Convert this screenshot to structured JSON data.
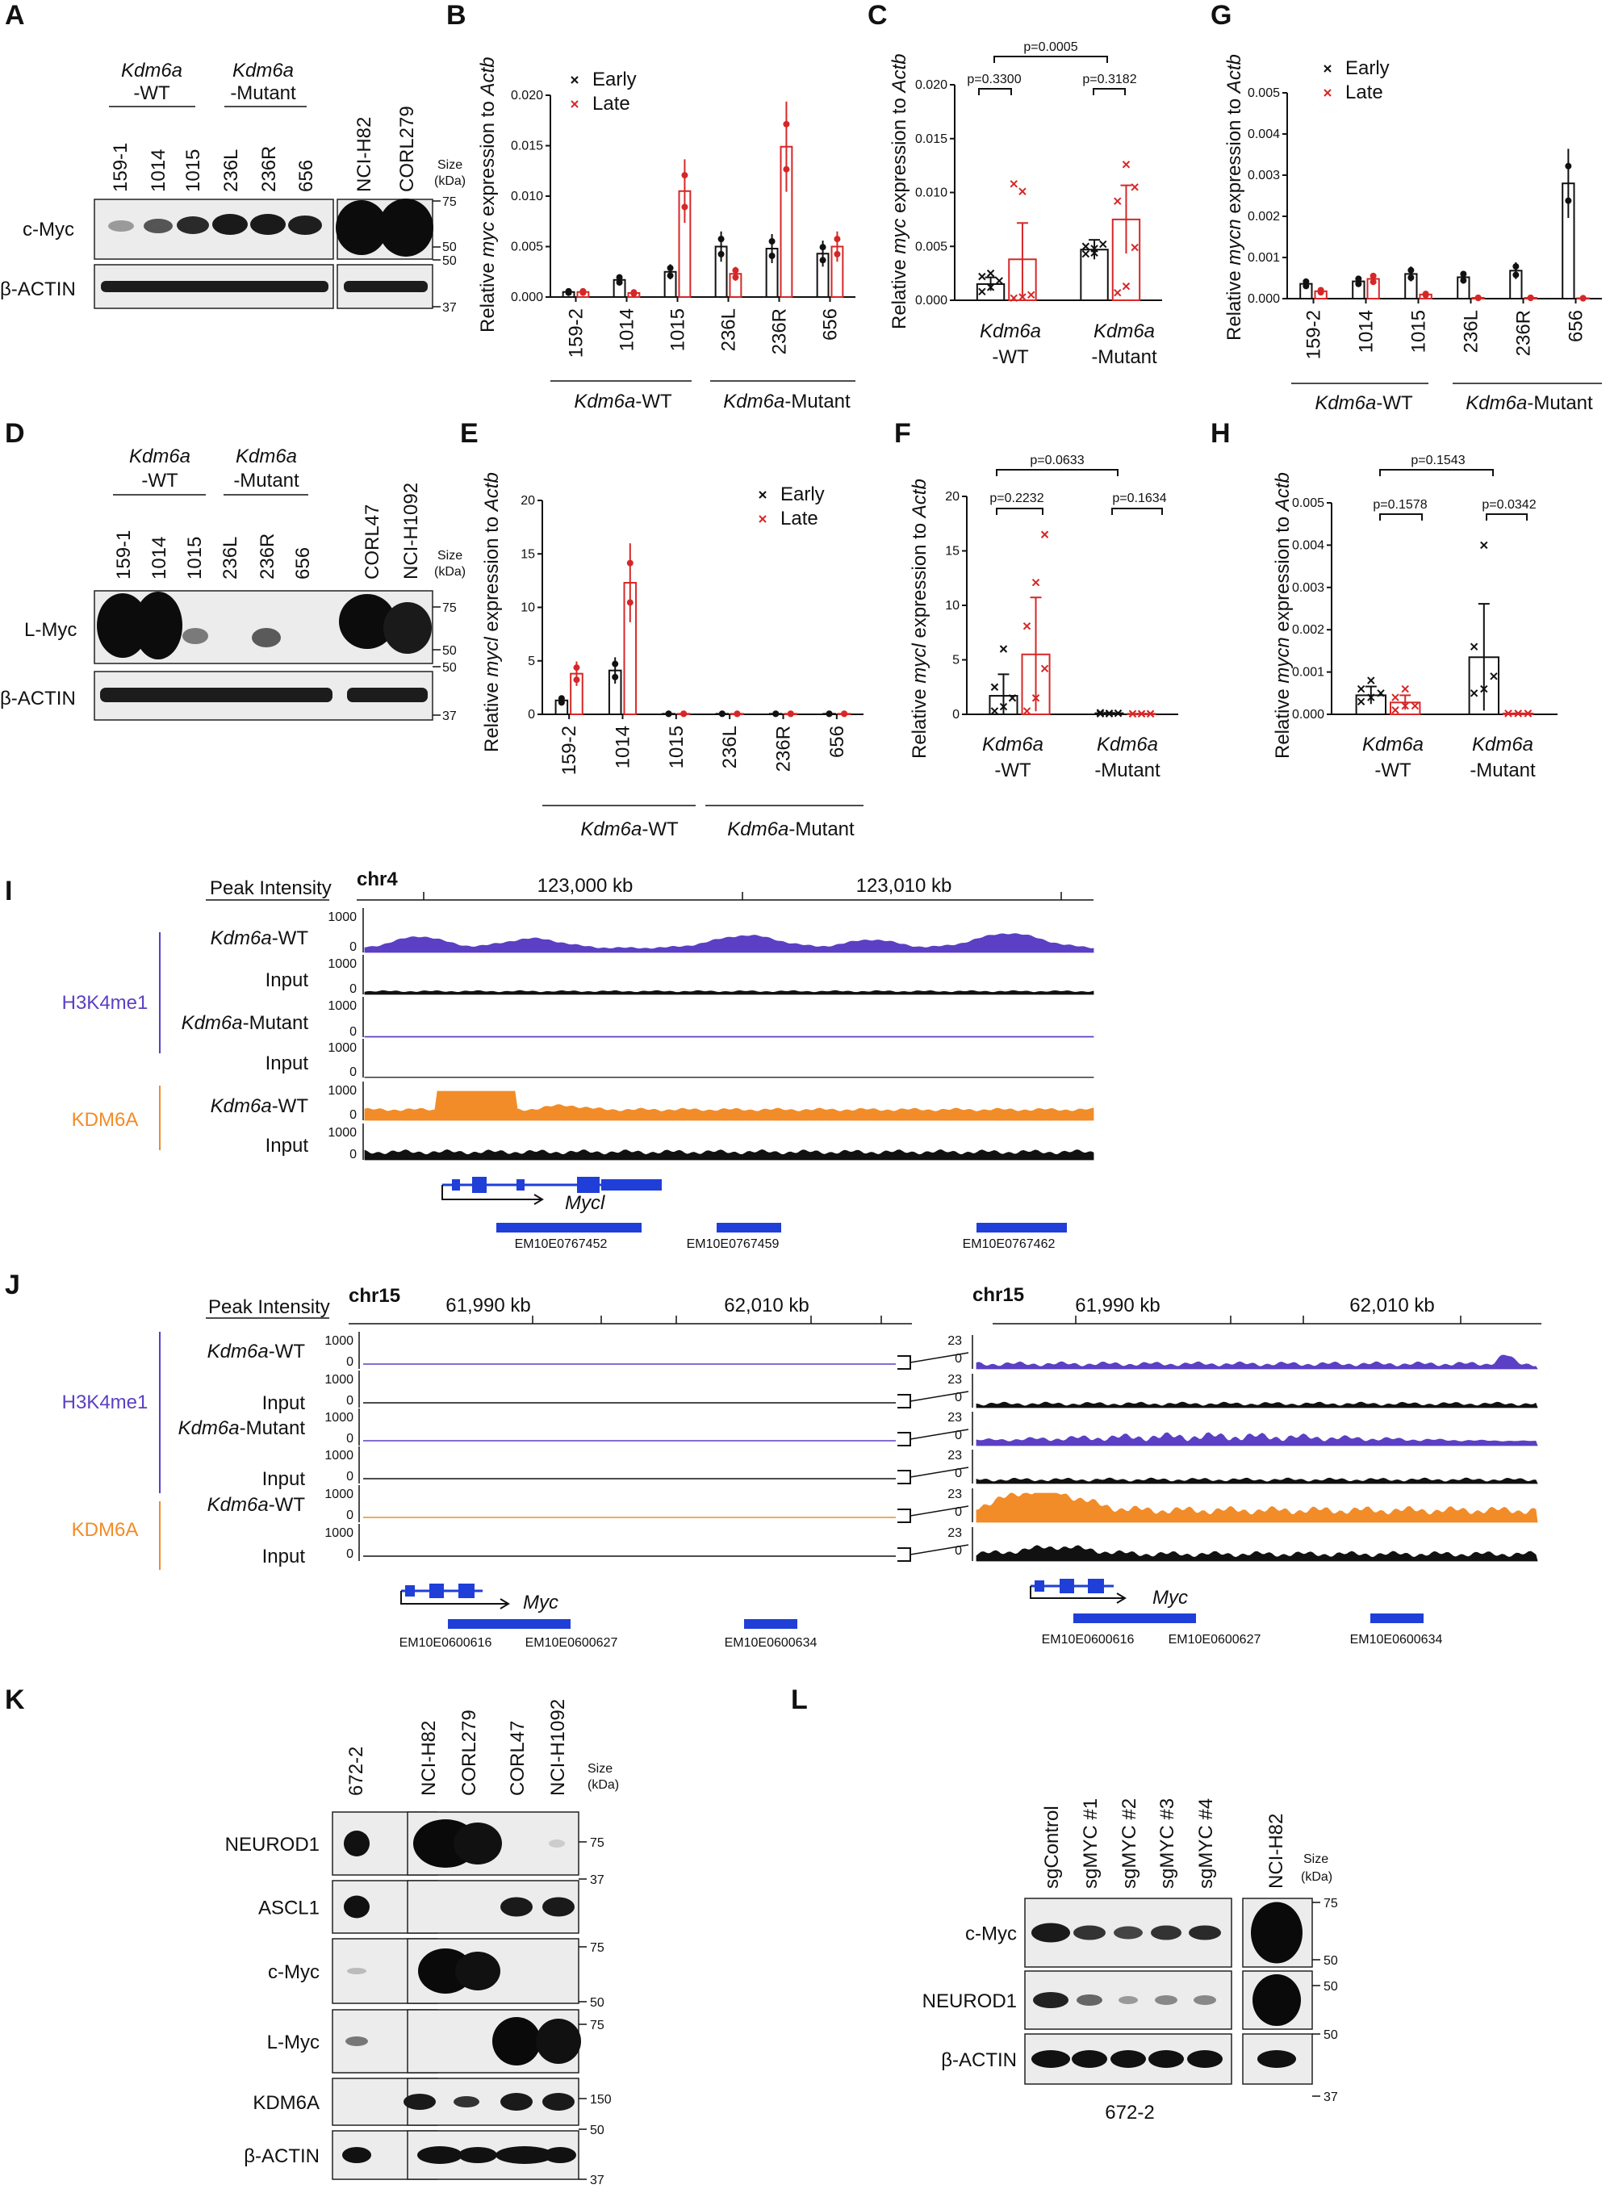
{
  "panels": {
    "A": {
      "letter": "A",
      "group1": [
        "Kdm6a",
        "-WT"
      ],
      "group2": [
        "Kdm6a",
        "-Mutant"
      ],
      "lanes": [
        "159-1",
        "1014",
        "1015",
        "236L",
        "236R",
        "656",
        "NCI-H82",
        "CORL279"
      ],
      "size_header": [
        "Size",
        "(kDa)"
      ],
      "rows": [
        "c-Myc",
        "β-ACTIN"
      ],
      "markers": [
        "75",
        "50",
        "50",
        "37"
      ]
    },
    "B": {
      "letter": "B",
      "ylabel_parts": [
        "Relative ",
        "myc",
        " expression to ",
        "Actb"
      ],
      "group_labels": [
        [
          "Kdm6a",
          "-WT"
        ],
        [
          "Kdm6a",
          "-Mutant"
        ]
      ]
    },
    "C": {
      "letter": "C",
      "ylabel_parts": [
        "Relative ",
        "myc",
        " expression to ",
        "Actb"
      ],
      "pvalues": [
        "p=0.0005",
        "p=0.3300",
        "p=0.3182"
      ],
      "groups": [
        [
          "Kdm6a",
          "-WT"
        ],
        [
          "Kdm6a",
          "-Mutant"
        ]
      ]
    },
    "D": {
      "letter": "D",
      "group1": [
        "Kdm6a",
        "-WT"
      ],
      "group2": [
        "Kdm6a",
        "-Mutant"
      ],
      "lanes": [
        "159-1",
        "1014",
        "1015",
        "236L",
        "236R",
        "656",
        "CORL47",
        "NCI-H1092"
      ],
      "size_header": [
        "Size",
        "(kDa)"
      ],
      "rows": [
        "L-Myc",
        "β-ACTIN"
      ],
      "markers": [
        "75",
        "50",
        "50",
        "37"
      ]
    },
    "E": {
      "letter": "E",
      "ylabel_parts": [
        "Relative ",
        "mycl",
        " expression to ",
        "Actb"
      ],
      "group_labels": [
        [
          "Kdm6a",
          "-WT"
        ],
        [
          "Kdm6a",
          "-Mutant"
        ]
      ]
    },
    "F": {
      "letter": "F",
      "ylabel_parts": [
        "Relative ",
        "mycl",
        " expression to ",
        "Actb"
      ],
      "pvalues": [
        "p=0.0633",
        "p=0.2232",
        "p=0.1634"
      ],
      "groups": [
        [
          "Kdm6a",
          "-WT"
        ],
        [
          "Kdm6a",
          "-Mutant"
        ]
      ]
    },
    "G": {
      "letter": "G",
      "ylabel_parts": [
        "Relative ",
        "mycn",
        " expression to ",
        "Actb"
      ],
      "group_labels": [
        [
          "Kdm6a",
          "-WT"
        ],
        [
          "Kdm6a",
          "-Mutant"
        ]
      ]
    },
    "H": {
      "letter": "H",
      "ylabel_parts": [
        "Relative ",
        "mycn",
        " expression to ",
        "Actb"
      ],
      "pvalues": [
        "p=0.1543",
        "p=0.1578",
        "p=0.0342"
      ],
      "groups": [
        [
          "Kdm6a",
          "-WT"
        ],
        [
          "Kdm6a",
          "-Mutant"
        ]
      ]
    },
    "I": {
      "letter": "I",
      "header": "Peak Intensity",
      "chrom": "chr4",
      "coords": [
        "123,000 kb",
        "123,010 kb"
      ],
      "groups": [
        "H3K4me1",
        "KDM6A"
      ],
      "track_labels": [
        "Kdm6a-WT",
        "Input",
        "Kdm6a-Mutant",
        "Input",
        "Kdm6a-WT",
        "Input"
      ],
      "scale_max": "1000",
      "scale_min": "0",
      "gene": "Mycl",
      "elements": [
        "EM10E0767452",
        "EM10E0767459",
        "EM10E0767462"
      ]
    },
    "J": {
      "letter": "J",
      "header": "Peak Intensity",
      "chrom": "chr15",
      "coords": [
        "61,990 kb",
        "62,010 kb"
      ],
      "groups": [
        "H3K4me1",
        "KDM6A"
      ],
      "track_labels": [
        "Kdm6a-WT",
        "Input",
        "Kdm6a-Mutant",
        "Input",
        "Kdm6a-WT",
        "Input"
      ],
      "scale_max": "1000",
      "scale_min": "0",
      "zoom_max": "23",
      "zoom_min": "0",
      "gene": "Myc",
      "elements": [
        "EM10E0600616",
        "EM10E0600627",
        "EM10E0600634"
      ]
    },
    "K": {
      "letter": "K",
      "lanes": [
        "672-2",
        "NCI-H82",
        "CORL279",
        "CORL47",
        "NCI-H1092"
      ],
      "size_header": [
        "Size",
        "(kDa)"
      ],
      "rows": [
        "NEUROD1",
        "ASCL1",
        "c-Myc",
        "L-Myc",
        "KDM6A",
        "β-ACTIN"
      ],
      "markers": [
        "75",
        "37",
        "75",
        "50",
        "75",
        "150",
        "50",
        "37"
      ]
    },
    "L": {
      "letter": "L",
      "lanes": [
        "sgControl",
        "sgMYC #1",
        "sgMYC #2",
        "sgMYC #3",
        "sgMYC #4",
        "NCI-H82"
      ],
      "size_header": [
        "Size",
        "(kDa)"
      ],
      "rows": [
        "c-Myc",
        "NEUROD1",
        "β-ACTIN"
      ],
      "markers": [
        "75",
        "50",
        "50",
        "50",
        "37"
      ],
      "caption": "672-2"
    }
  },
  "colors": {
    "early": "#111111",
    "late": "#d62728",
    "h3k4me1": "#5b3fc4",
    "kdm6a": "#f28c28",
    "gene": "#1f3fd8"
  },
  "chart_data": [
    {
      "panel": "B",
      "type": "bar",
      "categories": [
        "159-2",
        "1014",
        "1015",
        "236L",
        "236R",
        "656"
      ],
      "groups": [
        {
          "name": "Kdm6a-WT",
          "span": [
            0,
            2
          ]
        },
        {
          "name": "Kdm6a-Mutant",
          "span": [
            3,
            5
          ]
        }
      ],
      "series": [
        {
          "name": "Early",
          "values": [
            0.0005,
            0.0017,
            0.0025,
            0.005,
            0.0048,
            0.0043
          ]
        },
        {
          "name": "Late",
          "values": [
            0.0005,
            0.0004,
            0.0105,
            0.0023,
            0.0149,
            0.005
          ]
        }
      ],
      "yticks": [
        "0.000",
        "0.005",
        "0.010",
        "0.015",
        "0.020"
      ],
      "ylim": [
        0,
        0.02
      ],
      "legend": "top-left"
    },
    {
      "panel": "C",
      "type": "bar",
      "categories": [
        "Kdm6a-WT",
        "Kdm6a-Mutant"
      ],
      "series": [
        {
          "name": "Early",
          "values": [
            0.0015,
            0.0047
          ]
        },
        {
          "name": "Late",
          "values": [
            0.0038,
            0.0075
          ]
        }
      ],
      "points": {
        "Early": [
          [
            0.0008,
            0.0012,
            0.0018,
            0.0022,
            0.0025
          ],
          [
            0.0043,
            0.0048,
            0.0052,
            0.005,
            0.0044
          ]
        ],
        "Late": [
          [
            0.0002,
            0.0003,
            0.0005,
            0.0108,
            0.0101
          ],
          [
            0.0007,
            0.0013,
            0.0049,
            0.0092,
            0.0126,
            0.0105
          ]
        ]
      },
      "yticks": [
        "0.000",
        "0.005",
        "0.010",
        "0.015",
        "0.020"
      ],
      "ylim": [
        0,
        0.02
      ]
    },
    {
      "panel": "E",
      "type": "bar",
      "categories": [
        "159-2",
        "1014",
        "1015",
        "236L",
        "236R",
        "656"
      ],
      "groups": [
        {
          "name": "Kdm6a-WT",
          "span": [
            0,
            2
          ]
        },
        {
          "name": "Kdm6a-Mutant",
          "span": [
            3,
            5
          ]
        }
      ],
      "series": [
        {
          "name": "Early",
          "values": [
            1.3,
            4.1,
            0.05,
            0.05,
            0.05,
            0.05
          ]
        },
        {
          "name": "Late",
          "values": [
            3.8,
            12.3,
            0.05,
            0.05,
            0.05,
            0.05
          ]
        }
      ],
      "yticks": [
        "0",
        "5",
        "10",
        "15",
        "20"
      ],
      "ylim": [
        0,
        20
      ],
      "legend": "top-right"
    },
    {
      "panel": "F",
      "type": "bar",
      "categories": [
        "Kdm6a-WT",
        "Kdm6a-Mutant"
      ],
      "series": [
        {
          "name": "Early",
          "values": [
            1.7,
            0.1
          ]
        },
        {
          "name": "Late",
          "values": [
            5.5,
            0.05
          ]
        }
      ],
      "points": {
        "Early": [
          [
            0.3,
            0.7,
            1.5,
            2.5,
            6.0
          ],
          [
            0.05,
            0.1,
            0.1,
            0.15,
            0.05,
            0.1
          ]
        ],
        "Late": [
          [
            0.3,
            1.5,
            4.2,
            8.1,
            12.1,
            16.5
          ],
          [
            0.05,
            0.05,
            0.05,
            0.05,
            0.05,
            0.05
          ]
        ]
      },
      "yticks": [
        "0",
        "5",
        "10",
        "15",
        "20"
      ],
      "ylim": [
        0,
        20
      ]
    },
    {
      "panel": "G",
      "type": "bar",
      "categories": [
        "159-2",
        "1014",
        "1015",
        "236L",
        "236R",
        "656"
      ],
      "groups": [
        {
          "name": "Kdm6a-WT",
          "span": [
            0,
            2
          ]
        },
        {
          "name": "Kdm6a-Mutant",
          "span": [
            3,
            5
          ]
        }
      ],
      "series": [
        {
          "name": "Early",
          "values": [
            0.00036,
            0.00042,
            0.0006,
            0.00052,
            0.00068,
            0.0028
          ]
        },
        {
          "name": "Late",
          "values": [
            0.00018,
            0.00048,
            0.0001,
            2e-05,
            2e-05,
            1e-05
          ]
        }
      ],
      "yticks": [
        "0.000",
        "0.001",
        "0.002",
        "0.003",
        "0.004",
        "0.005"
      ],
      "ylim": [
        0,
        0.005
      ],
      "legend": "top-left"
    },
    {
      "panel": "H",
      "type": "bar",
      "categories": [
        "Kdm6a-WT",
        "Kdm6a-Mutant"
      ],
      "series": [
        {
          "name": "Early",
          "values": [
            0.00045,
            0.00135
          ]
        },
        {
          "name": "Late",
          "values": [
            0.00028,
            2e-05
          ]
        }
      ],
      "points": {
        "Early": [
          [
            0.0003,
            0.0004,
            0.0005,
            0.0006,
            0.0008
          ],
          [
            0.0005,
            0.0006,
            0.0009,
            0.0016,
            0.004
          ]
        ],
        "Late": [
          [
            0.0001,
            0.0002,
            0.0002,
            0.0004,
            0.0006
          ],
          [
            2e-05,
            2e-05,
            2e-05,
            2e-05,
            2e-05,
            2e-05
          ]
        ]
      },
      "yticks": [
        "0.000",
        "0.001",
        "0.002",
        "0.003",
        "0.004",
        "0.005"
      ],
      "ylim": [
        0,
        0.005
      ]
    }
  ]
}
